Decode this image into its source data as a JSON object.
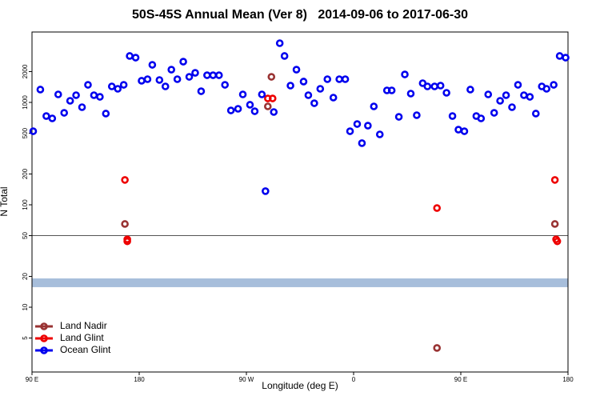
{
  "chart_data": {
    "type": "scatter",
    "title": "50S-45S Annual Mean (Ver 8)   2014-09-06 to 2017-06-30",
    "x_label": "Longitude (deg E)",
    "y_label": "N Total",
    "xlim": [
      90,
      540
    ],
    "xticks": [
      {
        "value": 90,
        "label": "90 E"
      },
      180,
      {
        "value": 270,
        "label": "90 W"
      },
      {
        "value": 360,
        "label": "0"
      },
      {
        "value": 450,
        "label": "90 E"
      },
      {
        "value": 540,
        "label": "180"
      }
    ],
    "ylim": [
      2.33,
      4870
    ],
    "log_y": true,
    "yticks": [
      5,
      10,
      20,
      50,
      100,
      200,
      500,
      1000,
      2000
    ],
    "hline": 50,
    "band": [
      15.7,
      19.1
    ],
    "band_color": "#a7bedb",
    "legend": "bottom-left",
    "series": [
      {
        "name": "Land Nadir",
        "color": "#993333",
        "x": [
          168,
          291,
          288,
          430,
          529
        ],
        "values": [
          65,
          1778,
          914,
          4,
          65
        ]
      },
      {
        "name": "Land Glint",
        "color": "#ee0000",
        "x": [
          168,
          170,
          170,
          288,
          292,
          430,
          529,
          530,
          531
        ],
        "values": [
          175,
          46,
          44,
          1094,
          1094,
          93,
          175,
          46,
          44
        ]
      },
      {
        "name": "Ocean Glint",
        "color": "#0000ee",
        "x": [
          91,
          97,
          102,
          107,
          112,
          117,
          122,
          127,
          132,
          137,
          142,
          147,
          152,
          157,
          162,
          167,
          172,
          177,
          182,
          187,
          191,
          197,
          202,
          207,
          212,
          217,
          222,
          227,
          232,
          237,
          242,
          247,
          252,
          257,
          263,
          267,
          273,
          277,
          283,
          286,
          293,
          298,
          302,
          307,
          312,
          318,
          322,
          327,
          332,
          338,
          343,
          348,
          353,
          357,
          363,
          367,
          372,
          377,
          382,
          388,
          392,
          398,
          403,
          408,
          413,
          418,
          422,
          428,
          433,
          438,
          443,
          448,
          453,
          458,
          463,
          467,
          473,
          478,
          483,
          488,
          493,
          498,
          503,
          508,
          513,
          518,
          522,
          528,
          533,
          538
        ],
        "values": [
          523,
          1334,
          736,
          698,
          1197,
          791,
          1037,
          1176,
          898,
          1485,
          1176,
          1134,
          778,
          1433,
          1358,
          1485,
          2840,
          2738,
          1626,
          1685,
          2328,
          1655,
          1433,
          2089,
          1685,
          2500,
          1778,
          1944,
          1286,
          1843,
          1843,
          1843,
          1485,
          835,
          866,
          1197,
          948,
          820,
          1197,
          136,
          806,
          3785,
          2840,
          1459,
          2089,
          1597,
          1176,
          982,
          1358,
          1685,
          1114,
          1685,
          1685,
          523,
          615,
          400,
          593,
          914,
          487,
          1310,
          1310,
          723,
          1876,
          1219,
          750,
          1540,
          1433,
          1433,
          1459,
          1241,
          736,
          542,
          523,
          1334,
          736,
          698,
          1197,
          791,
          1037,
          1176,
          898,
          1485,
          1176,
          1134,
          778,
          1433,
          1358,
          1485,
          2840,
          2738
        ]
      }
    ]
  }
}
